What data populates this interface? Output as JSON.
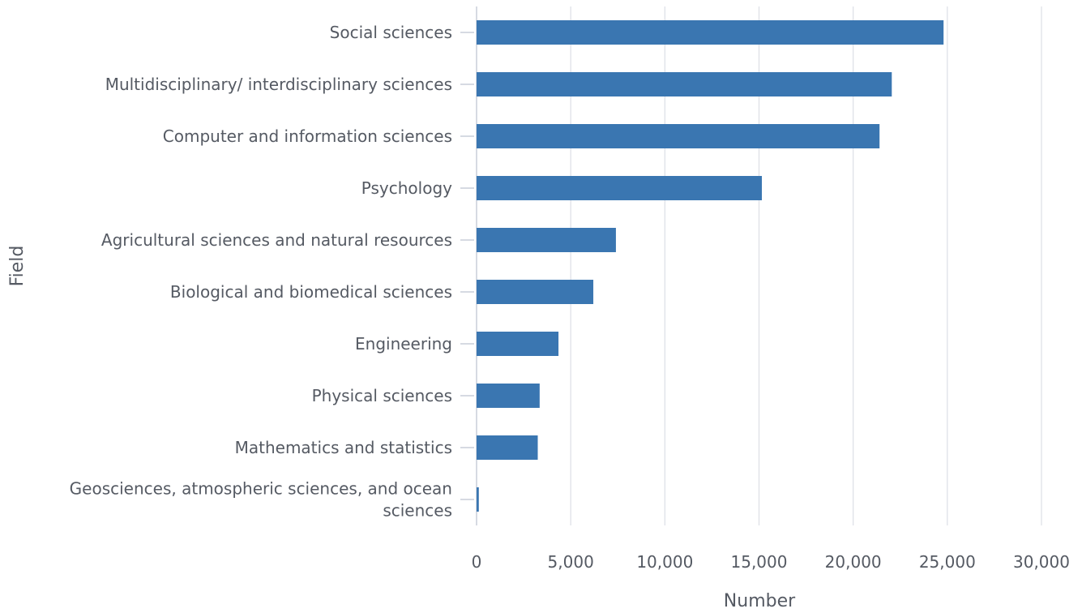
{
  "chart_data": {
    "type": "bar",
    "orientation": "horizontal",
    "xlabel": "Number",
    "ylabel": "Field",
    "xlim": [
      0,
      30000
    ],
    "xticks": [
      0,
      5000,
      10000,
      15000,
      20000,
      25000,
      30000
    ],
    "xtick_labels": [
      "0",
      "5,000",
      "10,000",
      "15,000",
      "20,000",
      "25,000",
      "30,000"
    ],
    "grid": true,
    "categories": [
      [
        "Social sciences"
      ],
      [
        "Multidisciplinary/ interdisciplinary sciences"
      ],
      [
        "Computer and information sciences"
      ],
      [
        "Psychology"
      ],
      [
        "Agricultural sciences and natural resources"
      ],
      [
        "Biological and biomedical sciences"
      ],
      [
        "Engineering"
      ],
      [
        "Physical sciences"
      ],
      [
        "Mathematics and statistics"
      ],
      [
        "Geosciences, atmospheric sciences, and ocean",
        "sciences"
      ]
    ],
    "values": [
      24800,
      22050,
      21400,
      15150,
      7400,
      6200,
      4350,
      3350,
      3250,
      120
    ],
    "bar_color": "#3a76b1"
  }
}
